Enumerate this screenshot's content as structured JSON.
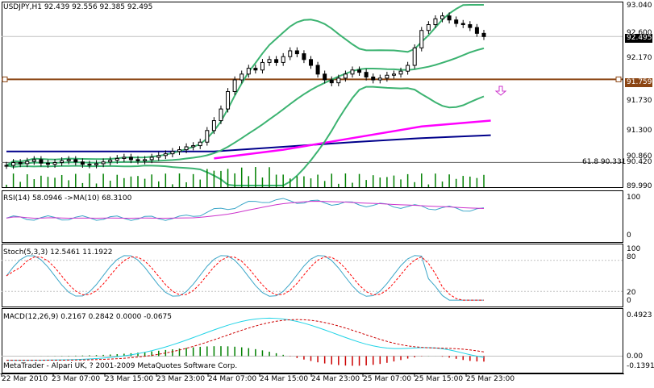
{
  "main_header": "USDJPY,H1  92.439 92.556 92.385 92.495",
  "price_axis": [
    "93.040",
    "92.600",
    "92.170",
    "91.730",
    "91.300",
    "90.860",
    "90.420",
    "89.990"
  ],
  "current_price": "92.495",
  "hline_price": "91.759",
  "fib_label": "61.8 90.331",
  "rsi_header": "RSI(14) 58.0946  ->MA(10) 68.3100",
  "rsi_axis": [
    "100",
    "0"
  ],
  "stoch_header": "Stoch(5,3,3) 12.5461 11.1922",
  "stoch_axis": [
    "100",
    "80",
    "20",
    "0"
  ],
  "macd_header": "MACD(12,26,9) 0.2167 0.2842 0.0000 -0.0675",
  "macd_axis": [
    "0.4923",
    "0.00",
    "-0.1391"
  ],
  "copyright": "MetaTrader - Alpari UK, ? 2001-2009 MetaQuotes Software Corp.",
  "dates": [
    "22 Mar 2010",
    "23 Mar 07:00",
    "23 Mar 15:00",
    "23 Mar 23:00",
    "24 Mar 07:00",
    "24 Mar 15:00",
    "24 Mar 23:00",
    "25 Mar 07:00",
    "25 Mar 15:00",
    "25 Mar 23:00"
  ],
  "colors": {
    "price_bar": "#000000",
    "bollinger": "#3cb371",
    "ma_magenta": "#ff00ff",
    "ma_navy": "#00008b",
    "hline": "#8b4513",
    "grid": "#c0c0c0",
    "rsi_line": "#3ba6c8",
    "rsi_ma": "#cc33cc",
    "stoch_main": "#3ba6c8",
    "stoch_signal": "#ff0000",
    "macd_line": "#1fd3e6",
    "macd_signal": "#cc0000",
    "macd_hist": "#008000"
  },
  "chart_data": {
    "type": "line",
    "symbol": "USDJPY",
    "timeframe": "H1",
    "ohlc_last": {
      "open": 92.439,
      "high": 92.556,
      "low": 92.385,
      "close": 92.495
    },
    "price_range": [
      89.99,
      93.04
    ],
    "closes": [
      90.28,
      90.33,
      90.31,
      90.35,
      90.38,
      90.32,
      90.3,
      90.33,
      90.36,
      90.38,
      90.34,
      90.3,
      90.29,
      90.31,
      90.34,
      90.37,
      90.4,
      90.42,
      90.38,
      90.36,
      90.38,
      90.42,
      90.45,
      90.48,
      90.52,
      90.55,
      90.6,
      90.62,
      90.68,
      90.88,
      91.05,
      91.25,
      91.55,
      91.75,
      91.85,
      91.95,
      91.92,
      92.05,
      92.1,
      92.05,
      92.15,
      92.25,
      92.2,
      92.1,
      92.0,
      91.85,
      91.75,
      91.7,
      91.78,
      91.85,
      91.92,
      91.88,
      91.8,
      91.75,
      91.78,
      91.83,
      91.85,
      91.9,
      92.0,
      92.3,
      92.6,
      92.7,
      92.8,
      92.85,
      92.78,
      92.72,
      92.7,
      92.65,
      92.55,
      92.495
    ],
    "hline": 91.759,
    "fibonacci": {
      "level": "61.8",
      "price": 90.331
    },
    "ma_magenta": [
      [
        30,
        90.4
      ],
      [
        40,
        90.55
      ],
      [
        50,
        90.75
      ],
      [
        60,
        90.95
      ],
      [
        70,
        91.05
      ]
    ],
    "ma_navy": [
      [
        0,
        90.52
      ],
      [
        30,
        90.52
      ],
      [
        40,
        90.6
      ],
      [
        50,
        90.68
      ],
      [
        60,
        90.75
      ],
      [
        70,
        90.8
      ]
    ],
    "rsi": {
      "range": [
        0,
        100
      ],
      "last": 58.0946,
      "ma_last": 68.31
    },
    "stochastic": {
      "range": [
        0,
        100
      ],
      "levels": [
        20,
        80
      ],
      "main_last": 12.5461,
      "signal_last": 11.1922
    },
    "macd": {
      "range": [
        -0.1391,
        0.4923
      ],
      "macd": 0.2167,
      "signal": 0.2842,
      "hist": -0.0675
    }
  }
}
